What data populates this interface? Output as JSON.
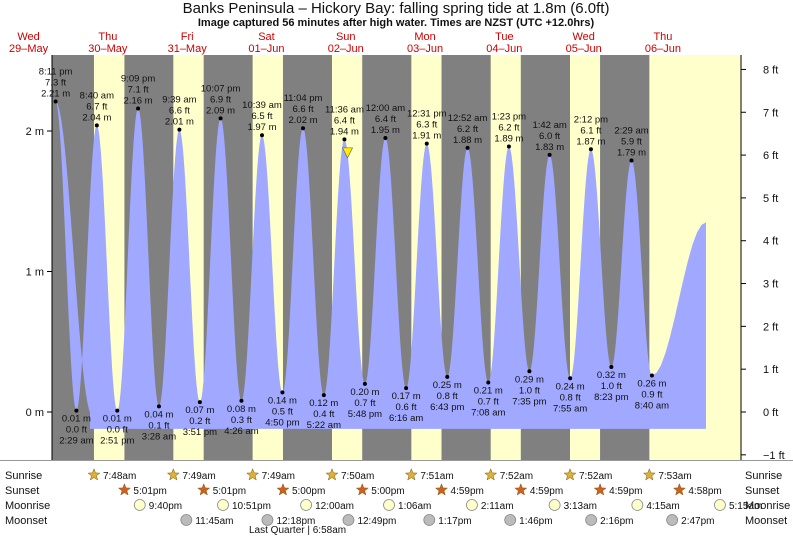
{
  "header": {
    "title": "Banks Peninsula – Hickory Bay: falling  spring tide at 1.8m (6.0ft)",
    "subtitle": "Image captured 56 minutes after high water. Times are NZST (UTC +12.0hrs)"
  },
  "chart_data": {
    "type": "area",
    "title": "Banks Peninsula – Hickory Bay: falling  spring tide at 1.8m (6.0ft)",
    "subtitle": "Image captured 56 minutes after high water. Times are NZST (UTC +12.0hrs)",
    "y_left_unit": "m",
    "y_right_unit": "ft",
    "y_left_ticks": [
      {
        "v": 0,
        "label": "0 m"
      },
      {
        "v": 1,
        "label": "1 m"
      },
      {
        "v": 2,
        "label": "2 m"
      }
    ],
    "y_right_ticks": [
      {
        "v": -1,
        "label": "−1 ft"
      },
      {
        "v": 0,
        "label": "0 ft"
      },
      {
        "v": 1,
        "label": "1 ft"
      },
      {
        "v": 2,
        "label": "2 ft"
      },
      {
        "v": 3,
        "label": "3 ft"
      },
      {
        "v": 4,
        "label": "4 ft"
      },
      {
        "v": 5,
        "label": "5 ft"
      },
      {
        "v": 6,
        "label": "6 ft"
      },
      {
        "v": 7,
        "label": "7 ft"
      },
      {
        "v": 8,
        "label": "8 ft"
      }
    ],
    "ylim_m": [
      -0.43,
      2.55
    ],
    "days": [
      {
        "dow": "Wed",
        "date": "29–May"
      },
      {
        "dow": "Thu",
        "date": "30–May"
      },
      {
        "dow": "Fri",
        "date": "31–May"
      },
      {
        "dow": "Sat",
        "date": "01–Jun"
      },
      {
        "dow": "Sun",
        "date": "02–Jun"
      },
      {
        "dow": "Mon",
        "date": "03–Jun"
      },
      {
        "dow": "Tue",
        "date": "04–Jun"
      },
      {
        "dow": "Wed",
        "date": "05–Jun"
      },
      {
        "dow": "Thu",
        "date": "06–Jun"
      }
    ],
    "night_periods": [
      {
        "from": "Wed 29–May 17:01",
        "to": "Thu 30–May 07:48"
      },
      {
        "from": "Thu 30–May 17:01",
        "to": "Fri 31–May 07:49"
      },
      {
        "from": "Fri 31–May 17:00",
        "to": "Sat 01–Jun 07:49"
      },
      {
        "from": "Sat 01–Jun 17:00",
        "to": "Sun 02–Jun 07:50"
      },
      {
        "from": "Sun 02–Jun 16:59",
        "to": "Mon 03–Jun 07:51"
      },
      {
        "from": "Mon 03–Jun 16:59",
        "to": "Tue 04–Jun 07:52"
      },
      {
        "from": "Tue 04–Jun 16:59",
        "to": "Wed 05–Jun 07:52"
      },
      {
        "from": "Wed 05–Jun 16:58",
        "to": "Thu 06–Jun 07:53"
      }
    ],
    "extremes": [
      {
        "type": "high",
        "day": 0,
        "time": "8:11 pm",
        "ft": "7.3 ft",
        "m": "2.21 m",
        "value": 2.21
      },
      {
        "type": "low",
        "day": 1,
        "time": "2:29 am",
        "ft": "0.0 ft",
        "m": "0.01 m",
        "value": 0.01
      },
      {
        "type": "high",
        "day": 1,
        "time": "8:40 am",
        "ft": "6.7 ft",
        "m": "2.04 m",
        "value": 2.04
      },
      {
        "type": "low",
        "day": 1,
        "time": "2:51 pm",
        "ft": "0.0 ft",
        "m": "0.01 m",
        "value": 0.01
      },
      {
        "type": "high",
        "day": 1,
        "time": "9:09 pm",
        "ft": "7.1 ft",
        "m": "2.16 m",
        "value": 2.16
      },
      {
        "type": "low",
        "day": 2,
        "time": "3:28 am",
        "ft": "0.1 ft",
        "m": "0.04 m",
        "value": 0.04
      },
      {
        "type": "high",
        "day": 2,
        "time": "9:39 am",
        "ft": "6.6 ft",
        "m": "2.01 m",
        "value": 2.01
      },
      {
        "type": "low",
        "day": 2,
        "time": "3:51 pm",
        "ft": "0.2 ft",
        "m": "0.07 m",
        "value": 0.07
      },
      {
        "type": "high",
        "day": 2,
        "time": "10:07 pm",
        "ft": "6.9 ft",
        "m": "2.09 m",
        "value": 2.09
      },
      {
        "type": "low",
        "day": 3,
        "time": "4:26 am",
        "ft": "0.3 ft",
        "m": "0.08 m",
        "value": 0.08
      },
      {
        "type": "high",
        "day": 3,
        "time": "10:39 am",
        "ft": "6.5 ft",
        "m": "1.97 m",
        "value": 1.97
      },
      {
        "type": "low",
        "day": 3,
        "time": "4:50 pm",
        "ft": "0.5 ft",
        "m": "0.14 m",
        "value": 0.14
      },
      {
        "type": "high",
        "day": 3,
        "time": "11:04 pm",
        "ft": "6.6 ft",
        "m": "2.02 m",
        "value": 2.02
      },
      {
        "type": "low",
        "day": 4,
        "time": "5:22 am",
        "ft": "0.4 ft",
        "m": "0.12 m",
        "value": 0.12
      },
      {
        "type": "high",
        "day": 4,
        "time": "11:36 am",
        "ft": "6.4 ft",
        "m": "1.94 m",
        "value": 1.94
      },
      {
        "type": "low",
        "day": 4,
        "time": "5:48 pm",
        "ft": "0.7 ft",
        "m": "0.20 m",
        "value": 0.2
      },
      {
        "type": "high",
        "day": 5,
        "time": "12:00 am",
        "ft": "6.4 ft",
        "m": "1.95 m",
        "value": 1.95
      },
      {
        "type": "low",
        "day": 5,
        "time": "6:16 am",
        "ft": "0.6 ft",
        "m": "0.17 m",
        "value": 0.17
      },
      {
        "type": "high",
        "day": 5,
        "time": "12:31 pm",
        "ft": "6.3 ft",
        "m": "1.91 m",
        "value": 1.91
      },
      {
        "type": "low",
        "day": 5,
        "time": "6:43 pm",
        "ft": "0.8 ft",
        "m": "0.25 m",
        "value": 0.25
      },
      {
        "type": "high",
        "day": 6,
        "time": "12:52 am",
        "ft": "6.2 ft",
        "m": "1.88 m",
        "value": 1.88
      },
      {
        "type": "low",
        "day": 6,
        "time": "7:08 am",
        "ft": "0.7 ft",
        "m": "0.21 m",
        "value": 0.21
      },
      {
        "type": "high",
        "day": 6,
        "time": "1:23 pm",
        "ft": "6.2 ft",
        "m": "1.89 m",
        "value": 1.89
      },
      {
        "type": "low",
        "day": 6,
        "time": "7:35 pm",
        "ft": "1.0 ft",
        "m": "0.29 m",
        "value": 0.29
      },
      {
        "type": "high",
        "day": 7,
        "time": "1:42 am",
        "ft": "6.0 ft",
        "m": "1.83 m",
        "value": 1.83
      },
      {
        "type": "low",
        "day": 7,
        "time": "7:55 am",
        "ft": "0.8 ft",
        "m": "0.24 m",
        "value": 0.24
      },
      {
        "type": "high",
        "day": 7,
        "time": "2:12 pm",
        "ft": "6.1 ft",
        "m": "1.87 m",
        "value": 1.87
      },
      {
        "type": "low",
        "day": 7,
        "time": "8:23 pm",
        "ft": "1.0 ft",
        "m": "0.32 m",
        "value": 0.32
      },
      {
        "type": "high",
        "day": 8,
        "time": "2:29 am",
        "ft": "5.9 ft",
        "m": "1.79 m",
        "value": 1.79
      },
      {
        "type": "low",
        "day": 8,
        "time": "8:40 am",
        "ft": "0.9 ft",
        "m": "0.26 m",
        "value": 0.26
      }
    ],
    "current_marker": {
      "time": "Sun 02–Jun 12:32",
      "value": 1.83,
      "label": "falling  spring tide at 1.8m (6.0ft)"
    },
    "colors": {
      "day": "#ffffcc",
      "night": "#808080",
      "water": "#a0a8ff",
      "day_label": "#cc0000",
      "marker": "#ffee00"
    }
  },
  "astro": {
    "labels": {
      "sunrise": "Sunrise",
      "sunset": "Sunset",
      "moonrise": "Moonrise",
      "moonset": "Moonset"
    },
    "sunrise": [
      {
        "day": 1,
        "time": "7:48am"
      },
      {
        "day": 2,
        "time": "7:49am"
      },
      {
        "day": 3,
        "time": "7:49am"
      },
      {
        "day": 4,
        "time": "7:50am"
      },
      {
        "day": 5,
        "time": "7:51am"
      },
      {
        "day": 6,
        "time": "7:52am"
      },
      {
        "day": 7,
        "time": "7:52am"
      },
      {
        "day": 8,
        "time": "7:53am"
      }
    ],
    "sunset": [
      {
        "day": 1,
        "time": "5:01pm"
      },
      {
        "day": 2,
        "time": "5:01pm"
      },
      {
        "day": 3,
        "time": "5:00pm"
      },
      {
        "day": 4,
        "time": "5:00pm"
      },
      {
        "day": 5,
        "time": "4:59pm"
      },
      {
        "day": 6,
        "time": "4:59pm"
      },
      {
        "day": 7,
        "time": "4:59pm"
      },
      {
        "day": 8,
        "time": "4:58pm"
      }
    ],
    "moonrise": [
      {
        "day": 1,
        "time": "9:40pm"
      },
      {
        "day": 2,
        "time": "10:51pm"
      },
      {
        "day": 4,
        "time": "12:00am"
      },
      {
        "day": 5,
        "time": "1:06am"
      },
      {
        "day": 6,
        "time": "2:11am"
      },
      {
        "day": 7,
        "time": "3:13am"
      },
      {
        "day": 8,
        "time": "4:15am"
      },
      {
        "day": 9,
        "time": "5:15am"
      }
    ],
    "moonset": [
      {
        "day": 2,
        "time": "11:45am"
      },
      {
        "day": 3,
        "time": "12:18pm"
      },
      {
        "day": 4,
        "time": "12:49pm"
      },
      {
        "day": 5,
        "time": "1:17pm"
      },
      {
        "day": 6,
        "time": "1:46pm"
      },
      {
        "day": 7,
        "time": "2:16pm"
      },
      {
        "day": 8,
        "time": "2:47pm"
      }
    ],
    "moon_phase": "Last Quarter | 6:58am"
  }
}
